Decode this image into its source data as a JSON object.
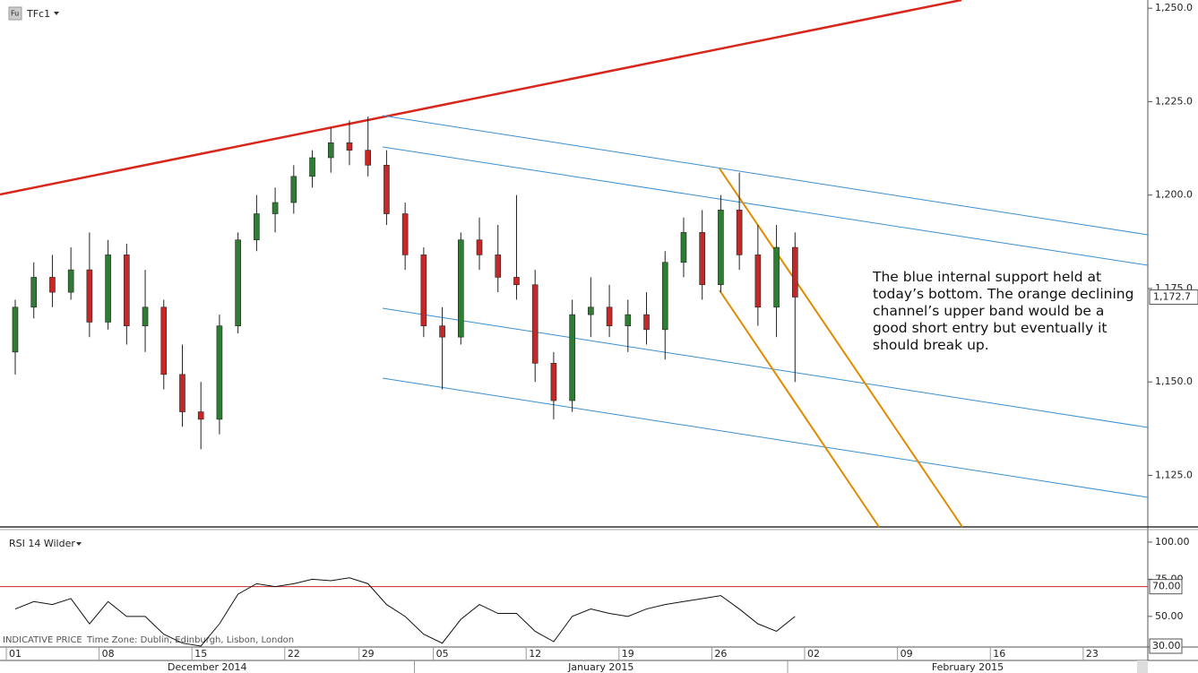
{
  "chart_data": [
    {
      "type": "candlestick",
      "title": "TFc1",
      "open": [
        1158,
        1170,
        1178,
        1174,
        1180,
        1166,
        1184,
        1165,
        1170,
        1152,
        1142,
        1140,
        1165,
        1188,
        1195,
        1198,
        1205,
        1210,
        1214,
        1212,
        1208,
        1195,
        1184,
        1165,
        1162,
        1188,
        1184,
        1178,
        1176,
        1155,
        1145,
        1168,
        1170,
        1165,
        1168,
        1164,
        1182,
        1190,
        1176,
        1196,
        1184,
        1170,
        1186
      ],
      "high": [
        1172,
        1182,
        1184,
        1186,
        1190,
        1188,
        1187,
        1180,
        1172,
        1160,
        1150,
        1168,
        1190,
        1200,
        1202,
        1208,
        1212,
        1218,
        1220,
        1221,
        1212,
        1198,
        1186,
        1170,
        1190,
        1194,
        1192,
        1200,
        1180,
        1158,
        1172,
        1178,
        1176,
        1172,
        1174,
        1185,
        1194,
        1196,
        1200,
        1206,
        1192,
        1192,
        1190
      ],
      "low": [
        1152,
        1167,
        1170,
        1172,
        1162,
        1164,
        1160,
        1158,
        1148,
        1138,
        1132,
        1136,
        1163,
        1185,
        1190,
        1195,
        1202,
        1206,
        1208,
        1205,
        1192,
        1180,
        1162,
        1148,
        1160,
        1180,
        1174,
        1172,
        1150,
        1140,
        1142,
        1162,
        1162,
        1158,
        1160,
        1156,
        1178,
        1172,
        1174,
        1180,
        1165,
        1162,
        1150
      ],
      "close": [
        1170,
        1178,
        1174,
        1180,
        1166,
        1184,
        1165,
        1170,
        1152,
        1142,
        1140,
        1165,
        1188,
        1195,
        1198,
        1205,
        1210,
        1214,
        1212,
        1208,
        1195,
        1184,
        1165,
        1162,
        1188,
        1184,
        1178,
        1176,
        1155,
        1145,
        1168,
        1170,
        1165,
        1168,
        1164,
        1182,
        1190,
        1176,
        1196,
        1184,
        1170,
        1186,
        1172.7
      ],
      "up_color": "#2e7d32",
      "down_color": "#c62828",
      "last_label": "1,172.7",
      "xlim": [
        -0.82,
        61.0
      ],
      "xticks": [
        {
          "value": 0,
          "label": "01"
        },
        {
          "value": 5,
          "label": "08"
        },
        {
          "value": 10,
          "label": "15"
        },
        {
          "value": 15,
          "label": "22"
        },
        {
          "value": 19,
          "label": "29"
        },
        {
          "value": 23,
          "label": "05"
        },
        {
          "value": 28,
          "label": "12"
        },
        {
          "value": 33,
          "label": "19"
        },
        {
          "value": 38,
          "label": "26"
        },
        {
          "value": 43,
          "label": "02"
        },
        {
          "value": 48,
          "label": "09"
        },
        {
          "value": 53,
          "label": "16"
        },
        {
          "value": 58,
          "label": "23"
        }
      ],
      "months": [
        {
          "value": -0.82,
          "label": "December 2014"
        },
        {
          "value": 21.5,
          "label": "January 2015"
        },
        {
          "value": 41.6,
          "label": "February 2015"
        }
      ],
      "ylim": [
        1111.2,
        1252.2
      ],
      "yticks": [
        {
          "value": 1125,
          "label": "1,125.0"
        },
        {
          "value": 1150,
          "label": "1,150.0"
        },
        {
          "value": 1175,
          "label": "1,175.0"
        },
        {
          "value": 1200,
          "label": "1,200.0"
        },
        {
          "value": 1225,
          "label": "1,225.0"
        },
        {
          "value": 1250,
          "label": "1,250.0"
        }
      ],
      "footer": "INDICATIVE PRICE",
      "timezone": "Time Zone: Dublin, Edinburgh, Lisbon, London",
      "annotation": "The blue internal support held at today’s bottom. The orange declining channel’s upper band would be a good short entry but eventually it should break up."
    },
    {
      "type": "line",
      "title": "RSI 14 Wilder",
      "color": "#111",
      "values": [
        55,
        60,
        58,
        62,
        45,
        60,
        50,
        50,
        38,
        32,
        30,
        45,
        65,
        72,
        70,
        72,
        75,
        74,
        76,
        72,
        58,
        50,
        38,
        32,
        48,
        58,
        52,
        52,
        40,
        33,
        50,
        55,
        52,
        50,
        55,
        58,
        60,
        62,
        64,
        55,
        45,
        40,
        50
      ],
      "ylim": [
        29.4,
        107.8
      ],
      "yticks": [
        {
          "value": 50,
          "label": "50.00"
        },
        {
          "value": 75,
          "label": "75.00"
        },
        {
          "value": 100,
          "label": "100.00"
        }
      ],
      "levels": [
        {
          "value": 70,
          "label": "70.00"
        },
        {
          "value": 30,
          "label": "30.00"
        }
      ],
      "level_color": "#c62828"
    }
  ]
}
